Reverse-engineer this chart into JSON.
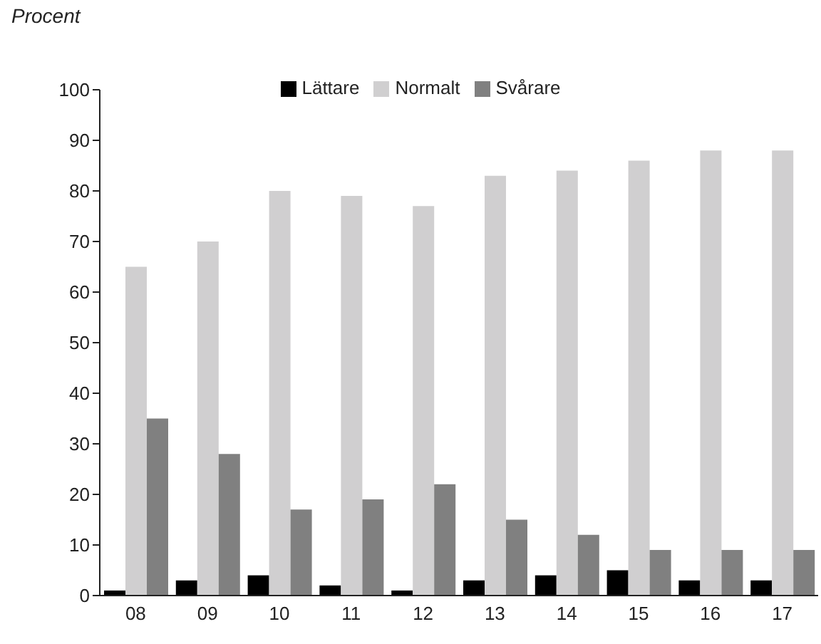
{
  "chart_data": {
    "type": "bar",
    "ylabel": "Procent",
    "categories": [
      "08",
      "09",
      "10",
      "11",
      "12",
      "13",
      "14",
      "15",
      "16",
      "17"
    ],
    "series": [
      {
        "name": "Lättare",
        "color": "#000000",
        "values": [
          1,
          3,
          4,
          2,
          1,
          3,
          4,
          5,
          3,
          3
        ]
      },
      {
        "name": "Normalt",
        "color": "#d0cfd0",
        "values": [
          65,
          70,
          80,
          79,
          77,
          83,
          84,
          86,
          88,
          88
        ]
      },
      {
        "name": "Svårare",
        "color": "#808080",
        "values": [
          35,
          28,
          17,
          19,
          22,
          15,
          12,
          9,
          9,
          9
        ]
      }
    ],
    "ylim": [
      0,
      100
    ],
    "yticks": [
      0,
      10,
      20,
      30,
      40,
      50,
      60,
      70,
      80,
      90,
      100
    ],
    "grid": false,
    "legend": "top"
  }
}
